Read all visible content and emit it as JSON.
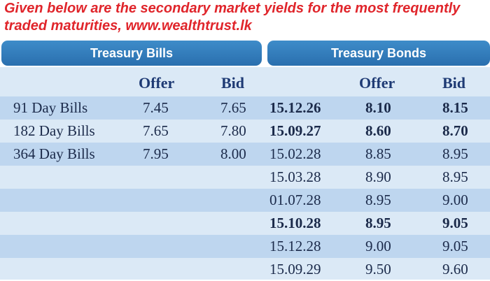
{
  "intro": {
    "line1": "Given below are the secondary market yields for the most frequently",
    "line2": "traded maturities, www.wealthtrust.lk"
  },
  "bills": {
    "title": "Treasury Bills",
    "offer_label": "Offer",
    "bid_label": "Bid",
    "rows": [
      {
        "name": "91 Day Bills",
        "offer": "7.45",
        "bid": "7.65"
      },
      {
        "name": "182 Day Bills",
        "offer": "7.65",
        "bid": "7.80"
      },
      {
        "name": "364 Day Bills",
        "offer": "7.95",
        "bid": "8.00"
      }
    ]
  },
  "bonds": {
    "title": "Treasury Bonds",
    "offer_label": "Offer",
    "bid_label": "Bid",
    "rows": [
      {
        "maturity": "15.12.26",
        "offer": "8.10",
        "bid": "8.15"
      },
      {
        "maturity": "15.09.27",
        "offer": "8.60",
        "bid": "8.70"
      },
      {
        "maturity": "15.02.28",
        "offer": "8.85",
        "bid": "8.95"
      },
      {
        "maturity": "15.03.28",
        "offer": "8.90",
        "bid": "8.95"
      },
      {
        "maturity": "01.07.28",
        "offer": "8.95",
        "bid": "9.00"
      },
      {
        "maturity": "15.10.28",
        "offer": "8.95",
        "bid": "9.05"
      },
      {
        "maturity": "15.12.28",
        "offer": "9.00",
        "bid": "9.05"
      },
      {
        "maturity": "15.09.29",
        "offer": "9.50",
        "bid": "9.60"
      }
    ]
  },
  "colors": {
    "intro_text": "#e0252b",
    "header_bg": "#2a6fae",
    "row_light": "#dbe9f6",
    "row_dark": "#bed6ef",
    "text": "#1b2a4a"
  }
}
